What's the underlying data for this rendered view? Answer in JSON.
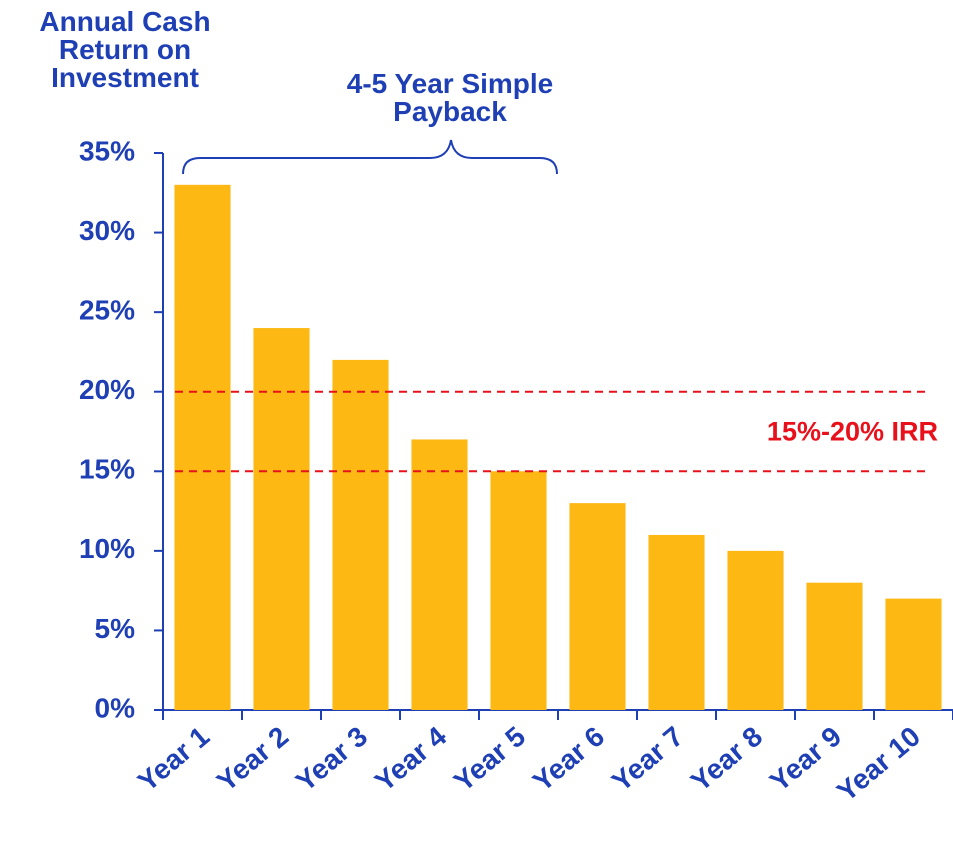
{
  "chart_data": {
    "type": "bar",
    "y_axis_label": "Annual Cash Return on Investment",
    "categories": [
      "Year 1",
      "Year 2",
      "Year 3",
      "Year 4",
      "Year 5",
      "Year 6",
      "Year 7",
      "Year 8",
      "Year 9",
      "Year 10"
    ],
    "values": [
      33,
      24,
      22,
      17,
      15,
      13,
      11,
      10,
      8,
      7
    ],
    "color": "#fdb813",
    "ylim": [
      0,
      35
    ],
    "yticks": [
      {
        "value": 0,
        "label": "0%"
      },
      {
        "value": 5,
        "label": "5%"
      },
      {
        "value": 10,
        "label": "10%"
      },
      {
        "value": 15,
        "label": "15%"
      },
      {
        "value": 20,
        "label": "20%"
      },
      {
        "value": 25,
        "label": "25%"
      },
      {
        "value": 30,
        "label": "30%"
      },
      {
        "value": 35,
        "label": "35%"
      }
    ],
    "reference_lines": {
      "values": [
        20,
        15
      ],
      "color": "#e8101a",
      "label": "15%-20% IRR"
    },
    "brace_annotation": "4-5 Year Simple Payback"
  }
}
